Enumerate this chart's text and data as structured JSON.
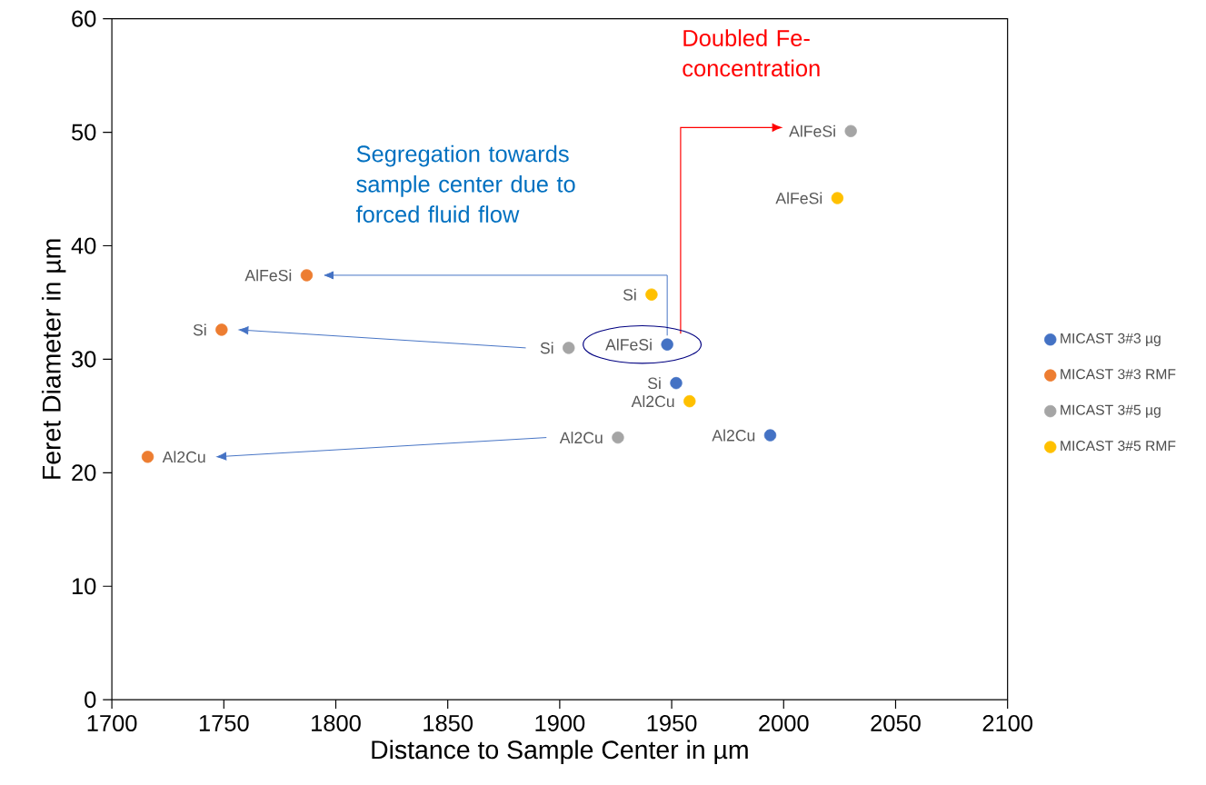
{
  "chart_data": {
    "type": "scatter",
    "xlabel": "Distance to Sample Center in µm",
    "ylabel": "Feret Diameter in µm",
    "xlim": [
      1700,
      2100
    ],
    "xticks": [
      1700,
      1750,
      1800,
      1850,
      1900,
      1950,
      2000,
      2050,
      2100
    ],
    "ylim": [
      0,
      60
    ],
    "yticks": [
      0,
      10,
      20,
      30,
      40,
      50,
      60
    ],
    "marker": "circle",
    "legend": "right",
    "series": [
      {
        "name": "MICAST 3#3 µg",
        "color": "#4472c4",
        "x": [
          1948,
          1952,
          1994
        ],
        "values": [
          31.3,
          27.9,
          23.3
        ]
      },
      {
        "name": "MICAST 3#3 RMF",
        "color": "#ed7d31",
        "x": [
          1787,
          1749,
          1716
        ],
        "values": [
          37.4,
          32.6,
          21.4
        ]
      },
      {
        "name": "MICAST 3#5 µg",
        "color": "#a5a5a5",
        "x": [
          2030,
          1904,
          1926
        ],
        "values": [
          50.1,
          31.0,
          23.1
        ]
      },
      {
        "name": "MICAST 3#5 RMF",
        "color": "#ffc000",
        "x": [
          2024,
          1941,
          1958
        ],
        "values": [
          44.2,
          35.7,
          26.3
        ]
      }
    ],
    "annotations": [
      {
        "text": "AlFeSi",
        "x": 1948,
        "y": 31.3
      },
      {
        "text": "Si",
        "x": 1952,
        "y": 27.9
      },
      {
        "text": "Al2Cu",
        "x": 1994,
        "y": 23.3
      },
      {
        "text": "AlFeSi",
        "x": 1787,
        "y": 37.4
      },
      {
        "text": "Si",
        "x": 1749,
        "y": 32.6
      },
      {
        "text": "Al2Cu",
        "x": 1716,
        "y": 21.4
      },
      {
        "text": "AlFeSi",
        "x": 2030,
        "y": 50.1
      },
      {
        "text": "Si",
        "x": 1904,
        "y": 31.0
      },
      {
        "text": "Al2Cu",
        "x": 1926,
        "y": 23.1
      },
      {
        "text": "AlFeSi",
        "x": 2024,
        "y": 44.2
      },
      {
        "text": "Si",
        "x": 1941,
        "y": 35.7
      },
      {
        "text": "Al2Cu",
        "x": 1958,
        "y": 26.3
      },
      "Segregation towards sample center due to forced fluid flow",
      "Doubled Fe-concentration"
    ]
  }
}
